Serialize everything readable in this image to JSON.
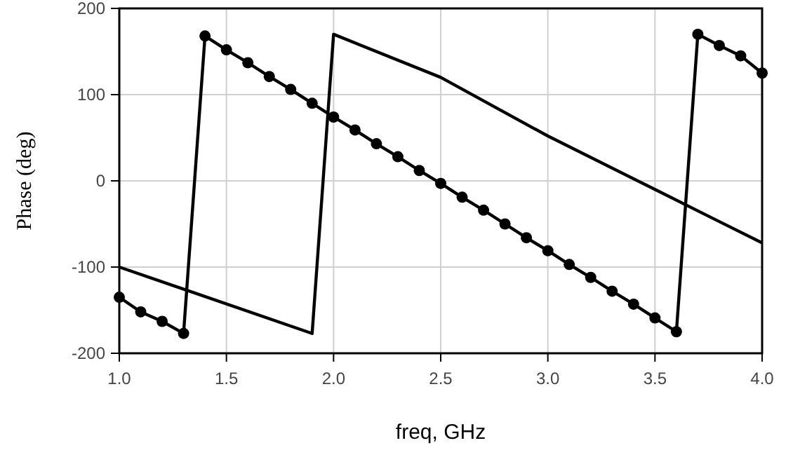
{
  "chart_data": {
    "type": "line",
    "xlabel": "freq, GHz",
    "ylabel": "Phase (deg)",
    "xlim": [
      1,
      4
    ],
    "ylim": [
      -200,
      200
    ],
    "xticks": [
      {
        "value": 1,
        "label": "1.0"
      },
      1.5,
      {
        "value": 2,
        "label": "2.0"
      },
      2.5,
      {
        "value": 3,
        "label": "3.0"
      },
      3.5,
      {
        "value": 4,
        "label": "4.0"
      }
    ],
    "yticks": [
      -200,
      -100,
      0,
      100,
      200
    ],
    "grid": true,
    "series": [
      {
        "color": "#000000",
        "marker": "circle",
        "x": [
          1,
          1.1,
          1.2,
          1.3,
          1.4,
          1.5,
          1.6,
          1.7,
          1.8,
          1.9,
          2,
          2.1,
          2.2,
          2.3,
          2.4,
          2.5,
          2.6,
          2.7,
          2.8,
          2.9,
          3,
          3.1,
          3.2,
          3.3,
          3.4,
          3.5,
          3.6,
          3.7,
          3.8,
          3.9,
          4
        ],
        "values": [
          -135,
          -152,
          -163,
          -177,
          168,
          152,
          137,
          121,
          106,
          90,
          74,
          59,
          43,
          28,
          12,
          -3,
          -19,
          -34,
          -50,
          -66,
          -81,
          -97,
          -112,
          -128,
          -143,
          -159,
          -175,
          170,
          157,
          145,
          125
        ]
      },
      {
        "color": "#000000",
        "marker": "none",
        "x": [
          1,
          1.9,
          2,
          2.5,
          3,
          3.5,
          4
        ],
        "values": [
          -100,
          -177,
          170,
          120,
          52,
          -10,
          -72
        ]
      }
    ]
  }
}
